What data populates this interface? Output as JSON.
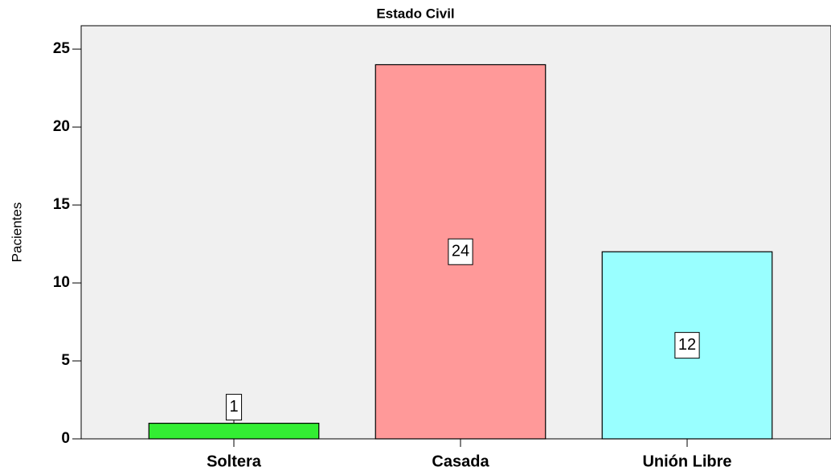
{
  "chart_data": {
    "type": "bar",
    "title": "Estado Civil",
    "y_label": "Pacientes",
    "categories": [
      "Soltera",
      "Casada",
      "Unión Libre"
    ],
    "values": [
      1,
      24,
      12
    ],
    "colors": [
      "#33ee33",
      "#ff9999",
      "#99ffff"
    ],
    "ylim": [
      0,
      26.5
    ],
    "yticks": [
      0,
      5,
      10,
      15,
      20,
      25
    ],
    "grid": false
  }
}
